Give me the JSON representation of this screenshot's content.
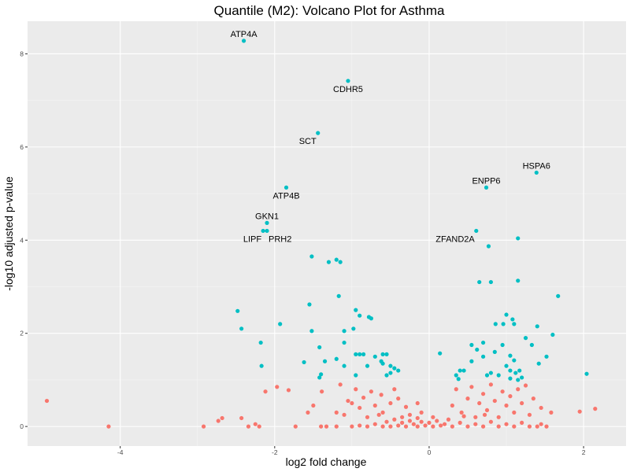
{
  "chart_data": {
    "type": "scatter",
    "title": "Quantile (M2): Volcano Plot for Asthma",
    "xlabel": "log2 fold change",
    "ylabel": "-log10 adjusted p-value",
    "xlim": [
      -5.2,
      2.55
    ],
    "ylim": [
      -0.42,
      8.7
    ],
    "x_ticks": [
      -4,
      -2,
      0,
      2
    ],
    "x_tick_labels": [
      "-4",
      "-2",
      "0",
      "2"
    ],
    "y_ticks": [
      0,
      2,
      4,
      6,
      8
    ],
    "y_tick_labels": [
      "0",
      "2",
      "4",
      "6",
      "8"
    ],
    "grid": true,
    "legend": "none",
    "colors": {
      "significant": "#00BFC4",
      "not_significant": "#F8766D",
      "panel": "#EBEBEB",
      "grid": "#FFFFFF"
    },
    "series": [
      {
        "color": "#00BFC4",
        "points": [
          [
            -2.4,
            8.28
          ],
          [
            -1.05,
            7.42
          ],
          [
            -1.44,
            6.3
          ],
          [
            -1.85,
            5.13
          ],
          [
            1.39,
            5.45
          ],
          [
            0.74,
            5.13
          ],
          [
            -2.1,
            4.37
          ],
          [
            -2.15,
            4.2
          ],
          [
            -2.1,
            4.2
          ],
          [
            0.61,
            4.2
          ],
          [
            1.15,
            4.04
          ],
          [
            0.77,
            3.87
          ],
          [
            -1.52,
            3.65
          ],
          [
            -1.2,
            3.58
          ],
          [
            -1.15,
            3.53
          ],
          [
            -1.3,
            3.53
          ],
          [
            0.65,
            3.1
          ],
          [
            0.8,
            3.1
          ],
          [
            1.15,
            3.13
          ],
          [
            -1.17,
            2.8
          ],
          [
            -2.48,
            2.48
          ],
          [
            -1.55,
            2.62
          ],
          [
            -0.95,
            2.5
          ],
          [
            -0.9,
            2.38
          ],
          [
            -0.78,
            2.35
          ],
          [
            -0.75,
            2.32
          ],
          [
            -1.93,
            2.2
          ],
          [
            -2.43,
            2.1
          ],
          [
            -1.52,
            2.05
          ],
          [
            -1.1,
            2.05
          ],
          [
            -0.98,
            2.1
          ],
          [
            -2.18,
            1.8
          ],
          [
            -1.42,
            1.7
          ],
          [
            -1.1,
            1.8
          ],
          [
            -1.35,
            1.4
          ],
          [
            -1.2,
            1.45
          ],
          [
            -2.17,
            1.3
          ],
          [
            -1.62,
            1.38
          ],
          [
            -1.1,
            1.3
          ],
          [
            -0.95,
            1.55
          ],
          [
            -0.9,
            1.55
          ],
          [
            -0.85,
            1.55
          ],
          [
            -0.7,
            1.5
          ],
          [
            -0.6,
            1.55
          ],
          [
            -0.55,
            1.55
          ],
          [
            -0.8,
            1.3
          ],
          [
            -0.62,
            1.4
          ],
          [
            -0.5,
            1.3
          ],
          [
            -0.45,
            1.25
          ],
          [
            -0.4,
            1.2
          ],
          [
            -0.5,
            1.15
          ],
          [
            -0.55,
            1.1
          ],
          [
            -0.6,
            1.35
          ],
          [
            -0.95,
            1.1
          ],
          [
            -1.4,
            1.12
          ],
          [
            -1.42,
            1.05
          ],
          [
            0.14,
            1.57
          ],
          [
            0.55,
            1.75
          ],
          [
            0.62,
            1.65
          ],
          [
            0.7,
            1.5
          ],
          [
            0.7,
            1.8
          ],
          [
            0.55,
            1.4
          ],
          [
            0.45,
            1.2
          ],
          [
            0.4,
            1.2
          ],
          [
            0.35,
            1.1
          ],
          [
            0.38,
            1.02
          ],
          [
            0.95,
            1.75
          ],
          [
            0.85,
            1.6
          ],
          [
            1.05,
            1.52
          ],
          [
            1.1,
            1.42
          ],
          [
            1.0,
            1.3
          ],
          [
            1.05,
            1.2
          ],
          [
            1.12,
            1.15
          ],
          [
            1.15,
            1.0
          ],
          [
            1.05,
            1.03
          ],
          [
            0.86,
            2.2
          ],
          [
            0.96,
            2.2
          ],
          [
            1.0,
            2.4
          ],
          [
            1.08,
            2.3
          ],
          [
            1.1,
            2.2
          ],
          [
            1.25,
            1.9
          ],
          [
            1.33,
            1.75
          ],
          [
            1.42,
            1.35
          ],
          [
            1.52,
            1.5
          ],
          [
            1.6,
            1.97
          ],
          [
            1.67,
            2.8
          ],
          [
            1.4,
            2.15
          ],
          [
            2.04,
            1.13
          ],
          [
            0.8,
            1.15
          ],
          [
            0.9,
            1.1
          ],
          [
            0.75,
            1.1
          ],
          [
            1.17,
            1.2
          ],
          [
            1.2,
            1.05
          ]
        ]
      },
      {
        "color": "#F8766D",
        "points": [
          [
            -4.95,
            0.55
          ],
          [
            -4.15,
            0.0
          ],
          [
            -2.92,
            0.0
          ],
          [
            -2.73,
            0.12
          ],
          [
            -2.68,
            0.18
          ],
          [
            -2.43,
            0.18
          ],
          [
            -2.34,
            0.0
          ],
          [
            -2.25,
            0.05
          ],
          [
            -2.2,
            0.0
          ],
          [
            -2.12,
            0.75
          ],
          [
            -1.97,
            0.85
          ],
          [
            -1.82,
            0.78
          ],
          [
            -1.73,
            0.0
          ],
          [
            -1.57,
            0.3
          ],
          [
            -1.5,
            0.45
          ],
          [
            -1.39,
            0.75
          ],
          [
            -1.33,
            0.0
          ],
          [
            -1.2,
            0.3
          ],
          [
            -1.1,
            0.25
          ],
          [
            -1.0,
            0.5
          ],
          [
            -1.15,
            0.9
          ],
          [
            -1.05,
            0.55
          ],
          [
            -0.95,
            0.8
          ],
          [
            -0.9,
            0.4
          ],
          [
            -0.85,
            0.62
          ],
          [
            -0.8,
            0.2
          ],
          [
            -0.75,
            0.75
          ],
          [
            -0.7,
            0.45
          ],
          [
            -0.62,
            0.68
          ],
          [
            -0.6,
            0.3
          ],
          [
            -0.5,
            0.5
          ],
          [
            -0.45,
            0.8
          ],
          [
            -0.4,
            0.6
          ],
          [
            -0.3,
            0.42
          ],
          [
            -0.25,
            0.25
          ],
          [
            -0.15,
            0.5
          ],
          [
            -0.1,
            0.3
          ],
          [
            0.05,
            0.2
          ],
          [
            0.1,
            0.12
          ],
          [
            0.25,
            0.15
          ],
          [
            0.3,
            0.45
          ],
          [
            0.35,
            0.8
          ],
          [
            0.42,
            0.3
          ],
          [
            0.5,
            0.6
          ],
          [
            0.55,
            0.85
          ],
          [
            0.6,
            0.2
          ],
          [
            0.65,
            0.5
          ],
          [
            0.7,
            0.7
          ],
          [
            0.75,
            0.35
          ],
          [
            0.8,
            0.9
          ],
          [
            0.85,
            0.55
          ],
          [
            0.9,
            0.2
          ],
          [
            0.95,
            0.75
          ],
          [
            1.0,
            0.45
          ],
          [
            1.05,
            0.65
          ],
          [
            1.1,
            0.3
          ],
          [
            1.15,
            0.8
          ],
          [
            1.2,
            0.5
          ],
          [
            1.25,
            0.88
          ],
          [
            1.3,
            0.25
          ],
          [
            1.35,
            0.6
          ],
          [
            1.45,
            0.4
          ],
          [
            1.52,
            0.0
          ],
          [
            1.58,
            0.3
          ],
          [
            1.95,
            0.32
          ],
          [
            2.15,
            0.38
          ],
          [
            -1.4,
            0.0
          ],
          [
            -1.2,
            0.0
          ],
          [
            -1.0,
            0.0
          ],
          [
            -0.9,
            0.02
          ],
          [
            -0.8,
            0.0
          ],
          [
            -0.7,
            0.05
          ],
          [
            -0.6,
            0.0
          ],
          [
            -0.55,
            0.1
          ],
          [
            -0.5,
            0.0
          ],
          [
            -0.45,
            0.15
          ],
          [
            -0.4,
            0.02
          ],
          [
            -0.35,
            0.08
          ],
          [
            -0.3,
            0.0
          ],
          [
            -0.25,
            0.12
          ],
          [
            -0.2,
            0.05
          ],
          [
            -0.15,
            0.0
          ],
          [
            -0.1,
            0.1
          ],
          [
            -0.05,
            0.02
          ],
          [
            0.0,
            0.08
          ],
          [
            0.05,
            0.0
          ],
          [
            0.15,
            0.02
          ],
          [
            0.2,
            0.05
          ],
          [
            0.3,
            0.0
          ],
          [
            0.4,
            0.08
          ],
          [
            0.5,
            0.0
          ],
          [
            0.6,
            0.05
          ],
          [
            0.7,
            0.0
          ],
          [
            0.8,
            0.1
          ],
          [
            0.9,
            0.0
          ],
          [
            1.0,
            0.05
          ],
          [
            1.1,
            0.0
          ],
          [
            1.2,
            0.08
          ],
          [
            1.3,
            0.0
          ],
          [
            1.4,
            0.0
          ],
          [
            1.45,
            0.05
          ],
          [
            -0.65,
            0.25
          ],
          [
            -0.35,
            0.2
          ],
          [
            0.45,
            0.22
          ],
          [
            0.72,
            0.25
          ],
          [
            -0.15,
            0.18
          ]
        ]
      }
    ],
    "labels": [
      {
        "text": "ATP4A",
        "x": -2.4,
        "y": 8.28,
        "pos": "above"
      },
      {
        "text": "CDHR5",
        "x": -1.05,
        "y": 7.42,
        "pos": "below"
      },
      {
        "text": "SCT",
        "x": -1.44,
        "y": 6.3,
        "pos": "below-left"
      },
      {
        "text": "ATP4B",
        "x": -1.85,
        "y": 5.13,
        "pos": "below"
      },
      {
        "text": "HSPA6",
        "x": 1.39,
        "y": 5.45,
        "pos": "above"
      },
      {
        "text": "ENPP6",
        "x": 0.74,
        "y": 5.13,
        "pos": "above"
      },
      {
        "text": "GKN1",
        "x": -2.1,
        "y": 4.37,
        "pos": "above"
      },
      {
        "text": "LIPF",
        "x": -2.15,
        "y": 4.2,
        "pos": "below-left"
      },
      {
        "text": "PRH2",
        "x": -2.1,
        "y": 4.2,
        "pos": "below-right"
      },
      {
        "text": "ZFAND2A",
        "x": 0.61,
        "y": 4.2,
        "pos": "below-left"
      }
    ]
  }
}
